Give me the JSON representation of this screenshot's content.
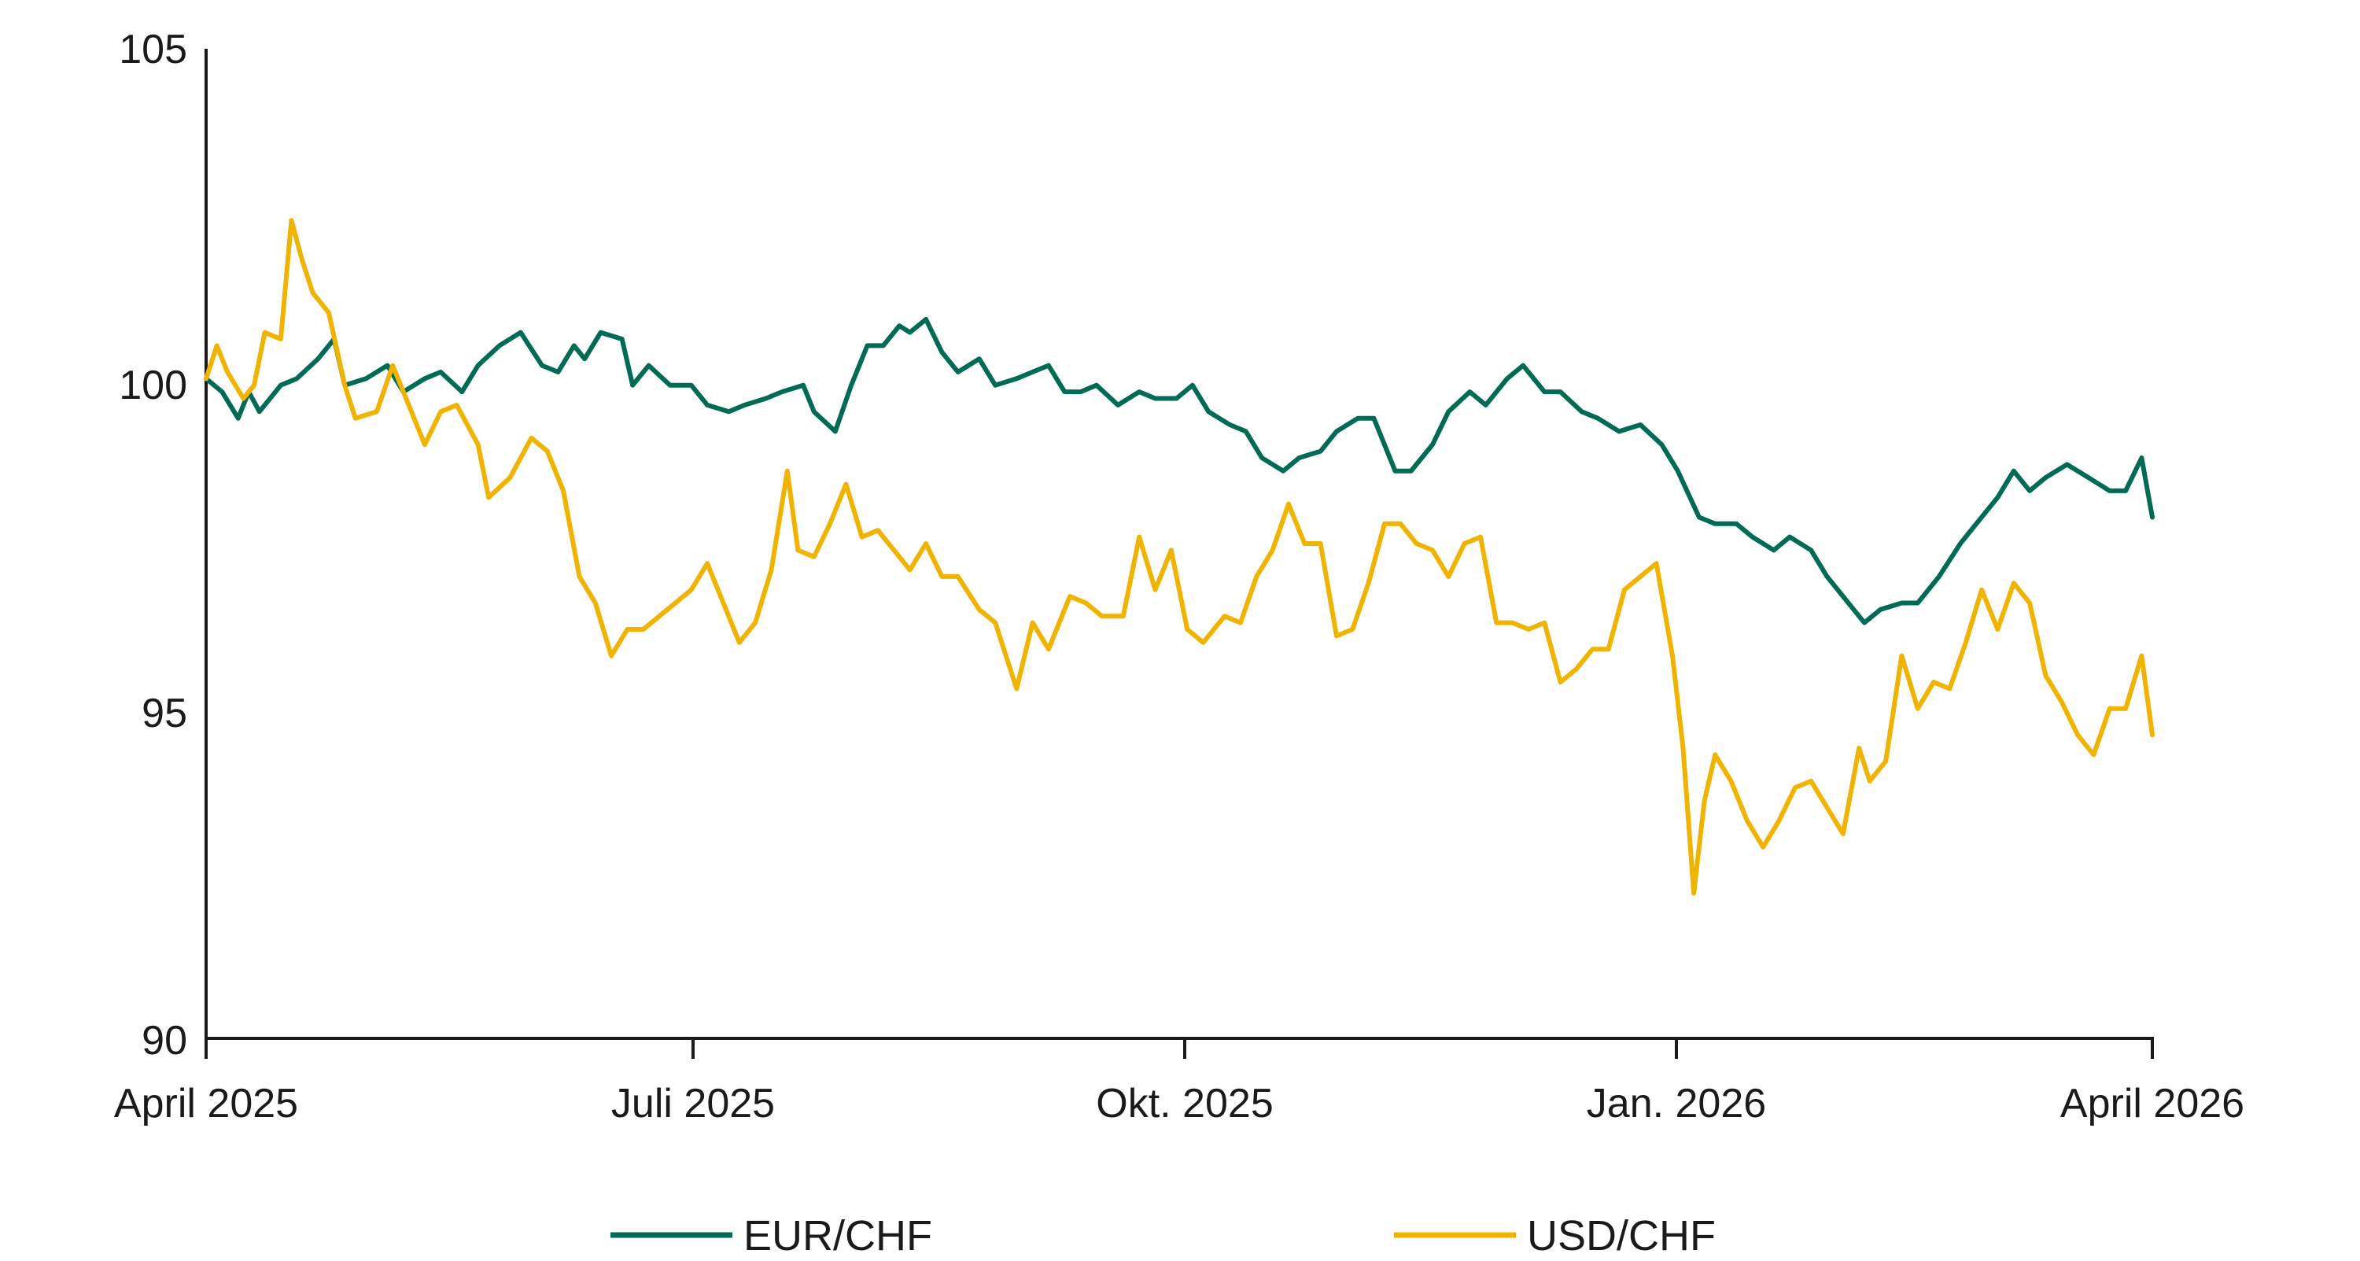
{
  "chart_data": {
    "type": "line",
    "title": "",
    "xlabel": "",
    "ylabel": "",
    "ylim": [
      90,
      105
    ],
    "yticks": [
      90,
      95,
      100,
      105
    ],
    "xlim": [
      "2025-04-01",
      "2026-04-01"
    ],
    "xticks": [
      {
        "date": "2025-04-01",
        "label": "April 2025"
      },
      {
        "date": "2025-07-01",
        "label": "Juli 2025"
      },
      {
        "date": "2025-10-01",
        "label": "Okt. 2025"
      },
      {
        "date": "2026-01-01",
        "label": "Jan. 2026"
      },
      {
        "date": "2026-04-01",
        "label": "April 2026"
      }
    ],
    "grid": false,
    "legend": "bottom",
    "series": [
      {
        "name": "EUR/CHF",
        "color": "#006b55",
        "points": [
          [
            "2025-04-01",
            100.0
          ],
          [
            "2025-04-04",
            99.8
          ],
          [
            "2025-04-07",
            99.4
          ],
          [
            "2025-04-09",
            99.8
          ],
          [
            "2025-04-11",
            99.5
          ],
          [
            "2025-04-15",
            99.9
          ],
          [
            "2025-04-18",
            100.0
          ],
          [
            "2025-04-22",
            100.3
          ],
          [
            "2025-04-25",
            100.6
          ],
          [
            "2025-04-27",
            99.9
          ],
          [
            "2025-05-01",
            100.0
          ],
          [
            "2025-05-05",
            100.2
          ],
          [
            "2025-05-08",
            99.8
          ],
          [
            "2025-05-12",
            100.0
          ],
          [
            "2025-05-15",
            100.1
          ],
          [
            "2025-05-19",
            99.8
          ],
          [
            "2025-05-22",
            100.2
          ],
          [
            "2025-05-26",
            100.5
          ],
          [
            "2025-05-30",
            100.7
          ],
          [
            "2025-06-03",
            100.2
          ],
          [
            "2025-06-06",
            100.1
          ],
          [
            "2025-06-09",
            100.5
          ],
          [
            "2025-06-11",
            100.3
          ],
          [
            "2025-06-14",
            100.7
          ],
          [
            "2025-06-18",
            100.6
          ],
          [
            "2025-06-20",
            99.9
          ],
          [
            "2025-06-23",
            100.2
          ],
          [
            "2025-06-27",
            99.9
          ],
          [
            "2025-07-01",
            99.9
          ],
          [
            "2025-07-04",
            99.6
          ],
          [
            "2025-07-08",
            99.5
          ],
          [
            "2025-07-11",
            99.6
          ],
          [
            "2025-07-15",
            99.7
          ],
          [
            "2025-07-18",
            99.8
          ],
          [
            "2025-07-22",
            99.9
          ],
          [
            "2025-07-24",
            99.5
          ],
          [
            "2025-07-28",
            99.2
          ],
          [
            "2025-07-31",
            99.9
          ],
          [
            "2025-08-03",
            100.5
          ],
          [
            "2025-08-06",
            100.5
          ],
          [
            "2025-08-09",
            100.8
          ],
          [
            "2025-08-11",
            100.7
          ],
          [
            "2025-08-14",
            100.9
          ],
          [
            "2025-08-17",
            100.4
          ],
          [
            "2025-08-20",
            100.1
          ],
          [
            "2025-08-24",
            100.3
          ],
          [
            "2025-08-27",
            99.9
          ],
          [
            "2025-08-31",
            100.0
          ],
          [
            "2025-09-03",
            100.1
          ],
          [
            "2025-09-06",
            100.2
          ],
          [
            "2025-09-09",
            99.8
          ],
          [
            "2025-09-12",
            99.8
          ],
          [
            "2025-09-15",
            99.9
          ],
          [
            "2025-09-19",
            99.6
          ],
          [
            "2025-09-23",
            99.8
          ],
          [
            "2025-09-26",
            99.7
          ],
          [
            "2025-09-30",
            99.7
          ],
          [
            "2025-10-03",
            99.9
          ],
          [
            "2025-10-06",
            99.5
          ],
          [
            "2025-10-10",
            99.3
          ],
          [
            "2025-10-13",
            99.2
          ],
          [
            "2025-10-16",
            98.8
          ],
          [
            "2025-10-20",
            98.6
          ],
          [
            "2025-10-23",
            98.8
          ],
          [
            "2025-10-27",
            98.9
          ],
          [
            "2025-10-30",
            99.2
          ],
          [
            "2025-11-03",
            99.4
          ],
          [
            "2025-11-06",
            99.4
          ],
          [
            "2025-11-10",
            98.6
          ],
          [
            "2025-11-13",
            98.6
          ],
          [
            "2025-11-17",
            99.0
          ],
          [
            "2025-11-20",
            99.5
          ],
          [
            "2025-11-24",
            99.8
          ],
          [
            "2025-11-27",
            99.6
          ],
          [
            "2025-12-01",
            100.0
          ],
          [
            "2025-12-04",
            100.2
          ],
          [
            "2025-12-08",
            99.8
          ],
          [
            "2025-12-11",
            99.8
          ],
          [
            "2025-12-15",
            99.5
          ],
          [
            "2025-12-18",
            99.4
          ],
          [
            "2025-12-22",
            99.2
          ],
          [
            "2025-12-26",
            99.3
          ],
          [
            "2025-12-30",
            99.0
          ],
          [
            "2026-01-02",
            98.6
          ],
          [
            "2026-01-06",
            97.9
          ],
          [
            "2026-01-09",
            97.8
          ],
          [
            "2026-01-13",
            97.8
          ],
          [
            "2026-01-16",
            97.6
          ],
          [
            "2026-01-20",
            97.4
          ],
          [
            "2026-01-23",
            97.6
          ],
          [
            "2026-01-27",
            97.4
          ],
          [
            "2026-01-30",
            97.0
          ],
          [
            "2026-02-03",
            96.6
          ],
          [
            "2026-02-06",
            96.3
          ],
          [
            "2026-02-09",
            96.5
          ],
          [
            "2026-02-13",
            96.6
          ],
          [
            "2026-02-16",
            96.6
          ],
          [
            "2026-02-20",
            97.0
          ],
          [
            "2026-02-24",
            97.5
          ],
          [
            "2026-02-27",
            97.8
          ],
          [
            "2026-03-03",
            98.2
          ],
          [
            "2026-03-06",
            98.6
          ],
          [
            "2026-03-09",
            98.3
          ],
          [
            "2026-03-12",
            98.5
          ],
          [
            "2026-03-16",
            98.7
          ],
          [
            "2026-03-20",
            98.5
          ],
          [
            "2026-03-24",
            98.3
          ],
          [
            "2026-03-27",
            98.3
          ],
          [
            "2026-03-30",
            98.8
          ],
          [
            "2026-04-01",
            97.9
          ]
        ]
      },
      {
        "name": "USD/CHF",
        "color": "#f0b400",
        "points": [
          [
            "2025-04-01",
            100.0
          ],
          [
            "2025-04-03",
            100.5
          ],
          [
            "2025-04-05",
            100.1
          ],
          [
            "2025-04-08",
            99.7
          ],
          [
            "2025-04-10",
            99.9
          ],
          [
            "2025-04-12",
            100.7
          ],
          [
            "2025-04-15",
            100.6
          ],
          [
            "2025-04-17",
            102.4
          ],
          [
            "2025-04-19",
            101.8
          ],
          [
            "2025-04-21",
            101.3
          ],
          [
            "2025-04-24",
            101.0
          ],
          [
            "2025-04-27",
            99.9
          ],
          [
            "2025-04-29",
            99.4
          ],
          [
            "2025-05-03",
            99.5
          ],
          [
            "2025-05-06",
            100.2
          ],
          [
            "2025-05-09",
            99.6
          ],
          [
            "2025-05-12",
            99.0
          ],
          [
            "2025-05-15",
            99.5
          ],
          [
            "2025-05-18",
            99.6
          ],
          [
            "2025-05-22",
            99.0
          ],
          [
            "2025-05-24",
            98.2
          ],
          [
            "2025-05-28",
            98.5
          ],
          [
            "2025-06-01",
            99.1
          ],
          [
            "2025-06-04",
            98.9
          ],
          [
            "2025-06-07",
            98.3
          ],
          [
            "2025-06-10",
            97.0
          ],
          [
            "2025-06-13",
            96.6
          ],
          [
            "2025-06-16",
            95.8
          ],
          [
            "2025-06-19",
            96.2
          ],
          [
            "2025-06-22",
            96.2
          ],
          [
            "2025-06-25",
            96.4
          ],
          [
            "2025-06-28",
            96.6
          ],
          [
            "2025-07-01",
            96.8
          ],
          [
            "2025-07-04",
            97.2
          ],
          [
            "2025-07-07",
            96.6
          ],
          [
            "2025-07-10",
            96.0
          ],
          [
            "2025-07-13",
            96.3
          ],
          [
            "2025-07-16",
            97.1
          ],
          [
            "2025-07-19",
            98.6
          ],
          [
            "2025-07-21",
            97.4
          ],
          [
            "2025-07-24",
            97.3
          ],
          [
            "2025-07-27",
            97.8
          ],
          [
            "2025-07-30",
            98.4
          ],
          [
            "2025-08-02",
            97.6
          ],
          [
            "2025-08-05",
            97.7
          ],
          [
            "2025-08-08",
            97.4
          ],
          [
            "2025-08-11",
            97.1
          ],
          [
            "2025-08-14",
            97.5
          ],
          [
            "2025-08-17",
            97.0
          ],
          [
            "2025-08-20",
            97.0
          ],
          [
            "2025-08-24",
            96.5
          ],
          [
            "2025-08-27",
            96.3
          ],
          [
            "2025-08-31",
            95.3
          ],
          [
            "2025-09-03",
            96.3
          ],
          [
            "2025-09-06",
            95.9
          ],
          [
            "2025-09-10",
            96.7
          ],
          [
            "2025-09-13",
            96.6
          ],
          [
            "2025-09-16",
            96.4
          ],
          [
            "2025-09-20",
            96.4
          ],
          [
            "2025-09-23",
            97.6
          ],
          [
            "2025-09-26",
            96.8
          ],
          [
            "2025-09-29",
            97.4
          ],
          [
            "2025-10-02",
            96.2
          ],
          [
            "2025-10-05",
            96.0
          ],
          [
            "2025-10-09",
            96.4
          ],
          [
            "2025-10-12",
            96.3
          ],
          [
            "2025-10-15",
            97.0
          ],
          [
            "2025-10-18",
            97.4
          ],
          [
            "2025-10-21",
            98.1
          ],
          [
            "2025-10-24",
            97.5
          ],
          [
            "2025-10-27",
            97.5
          ],
          [
            "2025-10-30",
            96.1
          ],
          [
            "2025-11-02",
            96.2
          ],
          [
            "2025-11-05",
            96.9
          ],
          [
            "2025-11-08",
            97.8
          ],
          [
            "2025-11-11",
            97.8
          ],
          [
            "2025-11-14",
            97.5
          ],
          [
            "2025-11-17",
            97.4
          ],
          [
            "2025-11-20",
            97.0
          ],
          [
            "2025-11-23",
            97.5
          ],
          [
            "2025-11-26",
            97.6
          ],
          [
            "2025-11-29",
            96.3
          ],
          [
            "2025-12-02",
            96.3
          ],
          [
            "2025-12-05",
            96.2
          ],
          [
            "2025-12-08",
            96.3
          ],
          [
            "2025-12-11",
            95.4
          ],
          [
            "2025-12-14",
            95.6
          ],
          [
            "2025-12-17",
            95.9
          ],
          [
            "2025-12-20",
            95.9
          ],
          [
            "2025-12-23",
            96.8
          ],
          [
            "2025-12-26",
            97.0
          ],
          [
            "2025-12-29",
            97.2
          ],
          [
            "2026-01-01",
            95.8
          ],
          [
            "2026-01-03",
            94.4
          ],
          [
            "2026-01-05",
            92.2
          ],
          [
            "2026-01-07",
            93.6
          ],
          [
            "2026-01-09",
            94.3
          ],
          [
            "2026-01-12",
            93.9
          ],
          [
            "2026-01-15",
            93.3
          ],
          [
            "2026-01-18",
            92.9
          ],
          [
            "2026-01-21",
            93.3
          ],
          [
            "2026-01-24",
            93.8
          ],
          [
            "2026-01-27",
            93.9
          ],
          [
            "2026-01-30",
            93.5
          ],
          [
            "2026-02-02",
            93.1
          ],
          [
            "2026-02-05",
            94.4
          ],
          [
            "2026-02-07",
            93.9
          ],
          [
            "2026-02-10",
            94.2
          ],
          [
            "2026-02-13",
            95.8
          ],
          [
            "2026-02-16",
            95.0
          ],
          [
            "2026-02-19",
            95.4
          ],
          [
            "2026-02-22",
            95.3
          ],
          [
            "2026-02-25",
            96.0
          ],
          [
            "2026-02-28",
            96.8
          ],
          [
            "2026-03-03",
            96.2
          ],
          [
            "2026-03-06",
            96.9
          ],
          [
            "2026-03-09",
            96.6
          ],
          [
            "2026-03-12",
            95.5
          ],
          [
            "2026-03-15",
            95.1
          ],
          [
            "2026-03-18",
            94.6
          ],
          [
            "2026-03-21",
            94.3
          ],
          [
            "2026-03-24",
            95.0
          ],
          [
            "2026-03-27",
            95.0
          ],
          [
            "2026-03-30",
            95.8
          ],
          [
            "2026-04-01",
            94.6
          ]
        ]
      }
    ]
  }
}
